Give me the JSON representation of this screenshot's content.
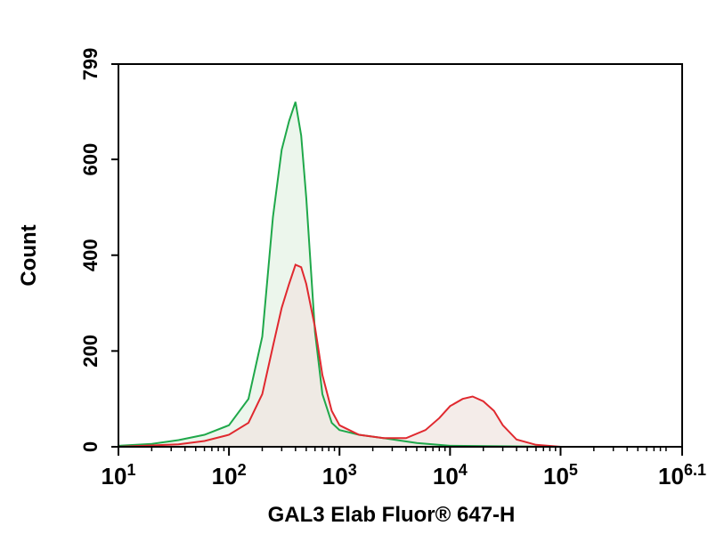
{
  "chart_data": {
    "type": "area",
    "xlabel": "GAL3 Elab Fluor® 647-H",
    "ylabel": "Count",
    "xscale": "log",
    "xlim": [
      10,
      1258925
    ],
    "ylim": [
      0,
      799
    ],
    "x_ticks": [
      {
        "value": 10,
        "base": "10",
        "exp": "1"
      },
      {
        "value": 100,
        "base": "10",
        "exp": "2"
      },
      {
        "value": 1000,
        "base": "10",
        "exp": "3"
      },
      {
        "value": 10000,
        "base": "10",
        "exp": "4"
      },
      {
        "value": 100000,
        "base": "10",
        "exp": "5"
      },
      {
        "value": 1258925,
        "base": "10",
        "exp": "6.1"
      }
    ],
    "y_ticks": [
      "0",
      "200",
      "400",
      "600",
      "799"
    ],
    "grid": false,
    "series": [
      {
        "color": "#1fa84a",
        "fill": "#e6f3e6",
        "x": [
          10,
          20,
          35,
          60,
          100,
          150,
          200,
          250,
          300,
          350,
          400,
          450,
          500,
          600,
          700,
          850,
          1000,
          1500,
          2500,
          5000,
          10000,
          100000
        ],
        "y": [
          2,
          6,
          14,
          25,
          45,
          100,
          230,
          480,
          620,
          680,
          720,
          650,
          520,
          240,
          110,
          50,
          35,
          25,
          18,
          8,
          2,
          0
        ]
      },
      {
        "color": "#e0292f",
        "fill": "#f0e6e2",
        "x": [
          10,
          35,
          60,
          100,
          150,
          200,
          250,
          300,
          350,
          400,
          450,
          500,
          600,
          700,
          850,
          1000,
          1500,
          2500,
          4000,
          6000,
          8000,
          10000,
          13000,
          16000,
          20000,
          25000,
          30000,
          40000,
          60000,
          100000
        ],
        "y": [
          0,
          5,
          12,
          25,
          50,
          110,
          210,
          290,
          340,
          380,
          375,
          340,
          250,
          150,
          75,
          45,
          25,
          18,
          18,
          35,
          60,
          85,
          100,
          105,
          95,
          75,
          45,
          15,
          4,
          0
        ]
      }
    ]
  }
}
